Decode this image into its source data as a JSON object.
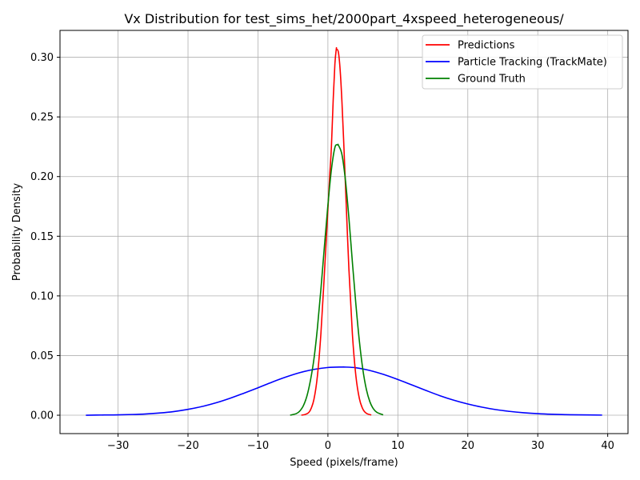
{
  "chart_data": {
    "type": "line",
    "title": "Vx Distribution for test_sims_het/2000part_4xspeed_heterogeneous/",
    "xlabel": "Speed (pixels/frame)",
    "ylabel": "Probability Density",
    "xlim": [
      -38.3,
      42.9
    ],
    "ylim": [
      -0.0154,
      0.3225
    ],
    "xticks": [
      -30,
      -20,
      -10,
      0,
      10,
      20,
      30,
      40
    ],
    "xtick_labels": [
      "−30",
      "−20",
      "−10",
      "0",
      "10",
      "20",
      "30",
      "40"
    ],
    "yticks": [
      0.0,
      0.05,
      0.1,
      0.15,
      0.2,
      0.25,
      0.3
    ],
    "ytick_labels": [
      "0.00",
      "0.05",
      "0.10",
      "0.15",
      "0.20",
      "0.25",
      "0.30"
    ],
    "grid": true,
    "legend_position": "top-right",
    "series": [
      {
        "name": "Predictions",
        "color": "#ff0000",
        "x": [
          -3.8,
          -3.0,
          -2.5,
          -2.0,
          -1.5,
          -1.0,
          -0.5,
          0.0,
          0.25,
          0.5,
          0.75,
          1.0,
          1.2,
          1.25,
          1.5,
          1.75,
          2.0,
          2.25,
          2.5,
          3.0,
          3.5,
          4.0,
          4.5,
          5.0,
          5.5,
          6.2
        ],
        "y": [
          0.0,
          0.0012,
          0.0044,
          0.0132,
          0.0329,
          0.0685,
          0.119,
          0.1726,
          0.1999,
          0.225,
          0.2634,
          0.2945,
          0.307,
          0.3068,
          0.3042,
          0.2893,
          0.2634,
          0.2302,
          0.1937,
          0.1226,
          0.068,
          0.0329,
          0.0139,
          0.0051,
          0.0016,
          0.0002
        ]
      },
      {
        "name": "Particle Tracking (TrackMate)",
        "color": "#0000ff",
        "x": [
          -34.6,
          -32,
          -30,
          -28,
          -26,
          -24,
          -22,
          -20,
          -18,
          -16,
          -14,
          -12,
          -10,
          -8,
          -6,
          -4,
          -2,
          0,
          2,
          2.3,
          4,
          6,
          8,
          10,
          12,
          14,
          16,
          18,
          20,
          22,
          24,
          26,
          28,
          30,
          32,
          34,
          36,
          39.2
        ],
        "y": [
          0.0,
          0.0002,
          0.0003,
          0.0006,
          0.0011,
          0.0019,
          0.0031,
          0.0049,
          0.0073,
          0.0104,
          0.0142,
          0.0185,
          0.023,
          0.0277,
          0.032,
          0.0357,
          0.0384,
          0.04,
          0.0404,
          0.0404,
          0.0398,
          0.0375,
          0.0341,
          0.0299,
          0.0254,
          0.0208,
          0.0164,
          0.0126,
          0.0094,
          0.0068,
          0.0047,
          0.0032,
          0.0021,
          0.0013,
          0.0008,
          0.0005,
          0.0003,
          0.0001
        ]
      },
      {
        "name": "Ground Truth",
        "color": "#008000",
        "x": [
          -5.4,
          -4.5,
          -4.0,
          -3.5,
          -3.0,
          -2.5,
          -2.0,
          -1.5,
          -1.0,
          -0.5,
          0.0,
          0.5,
          1.0,
          1.4,
          1.5,
          2.0,
          2.5,
          3.0,
          3.5,
          4.0,
          4.5,
          5.0,
          5.5,
          6.0,
          6.5,
          7.0,
          7.9
        ],
        "y": [
          0.0,
          0.0014,
          0.0036,
          0.0081,
          0.0161,
          0.0291,
          0.047,
          0.0731,
          0.1057,
          0.1415,
          0.1761,
          0.2058,
          0.2244,
          0.2266,
          0.2263,
          0.2186,
          0.1972,
          0.1654,
          0.1282,
          0.0929,
          0.062,
          0.0381,
          0.0216,
          0.0113,
          0.0054,
          0.0024,
          0.0003
        ]
      }
    ]
  }
}
